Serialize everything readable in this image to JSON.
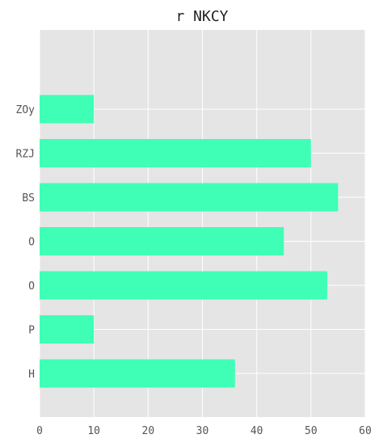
{
  "chart_data": {
    "type": "bar",
    "orientation": "horizontal",
    "title": "r NKCY",
    "xlabel": "",
    "ylabel": "",
    "categories": [
      "H",
      "P",
      "O",
      "O",
      "BS",
      "RZJ",
      "ZOy"
    ],
    "values": [
      36,
      10,
      53,
      45,
      55,
      50,
      10
    ],
    "xlim": [
      0,
      60
    ],
    "x_ticks": [
      "0",
      "10",
      "20",
      "30",
      "40",
      "50",
      "60"
    ],
    "grid": true,
    "colors": {
      "bar": "#3fffb6",
      "background": "#e5e5e5",
      "grid": "#ffffff"
    }
  }
}
